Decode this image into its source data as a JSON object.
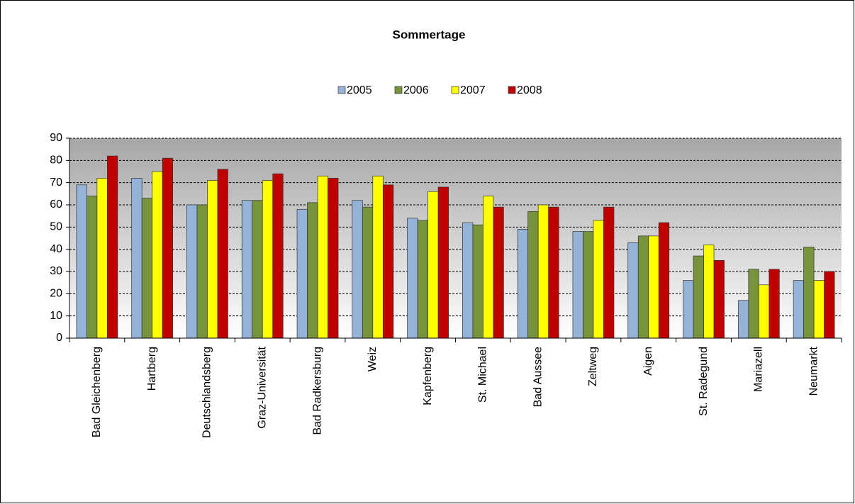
{
  "chart_data": {
    "type": "bar",
    "title": "Sommertage",
    "categories": [
      "Bad Gleichenberg",
      "Hartberg",
      "Deutschlandsberg",
      "Graz-Universität",
      "Bad Radkersburg",
      "Weiz",
      "Kapfenberg",
      "St. Michael",
      "Bad Aussee",
      "Zeltweg",
      "Aigen",
      "St. Radegund",
      "Mariazell",
      "Neumarkt"
    ],
    "series": [
      {
        "name": "2005",
        "color": "#95b3d7",
        "values": [
          69,
          72,
          60,
          62,
          58,
          62,
          54,
          52,
          49,
          48,
          43,
          26,
          17,
          26
        ]
      },
      {
        "name": "2006",
        "color": "#77933c",
        "values": [
          64,
          63,
          60,
          62,
          61,
          59,
          53,
          51,
          57,
          48,
          46,
          37,
          31,
          41
        ]
      },
      {
        "name": "2007",
        "color": "#ffff00",
        "values": [
          72,
          75,
          71,
          71,
          73,
          73,
          66,
          64,
          60,
          53,
          46,
          42,
          24,
          26
        ]
      },
      {
        "name": "2008",
        "color": "#c00000",
        "values": [
          82,
          81,
          76,
          74,
          72,
          69,
          68,
          59,
          59,
          59,
          52,
          35,
          31,
          30
        ]
      }
    ],
    "ylim": [
      0,
      90
    ],
    "yticks": [
      0,
      10,
      20,
      30,
      40,
      50,
      60,
      70,
      80,
      90
    ],
    "grid": true,
    "legend": "top"
  }
}
